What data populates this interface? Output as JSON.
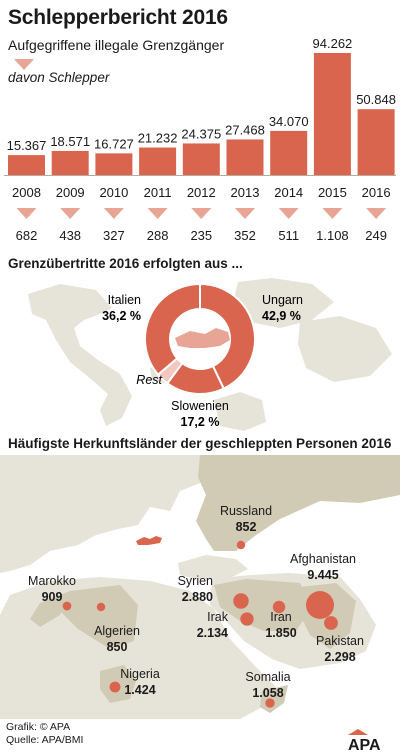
{
  "title": "Schlepperbericht 2016",
  "subtitle": "Aufgegriffene illegale Grenzgänger",
  "legend": {
    "schlepper_label": "davon Schlepper"
  },
  "chart_data": [
    {
      "type": "bar",
      "categories": [
        "2008",
        "2009",
        "2010",
        "2011",
        "2012",
        "2013",
        "2014",
        "2015",
        "2016"
      ],
      "series": [
        {
          "name": "Aufgegriffene illegale Grenzgänger",
          "values": [
            15367,
            18571,
            16727,
            21232,
            24375,
            27468,
            34070,
            94262,
            50848
          ]
        },
        {
          "name": "davon Schlepper",
          "values": [
            682,
            438,
            327,
            288,
            235,
            352,
            511,
            1108,
            249
          ]
        }
      ],
      "value_labels": [
        "15.367",
        "18.571",
        "16.727",
        "21.232",
        "24.375",
        "27.468",
        "34.070",
        "94.262",
        "50.848"
      ],
      "schlepper_labels": [
        "682",
        "438",
        "327",
        "288",
        "235",
        "352",
        "511",
        "1.108",
        "249"
      ],
      "title": "Schlepperbericht 2016",
      "subtitle": "Aufgegriffene illegale Grenzgänger",
      "ylim": [
        0,
        100000
      ]
    },
    {
      "type": "pie",
      "title": "Grenzübertritte 2016 erfolgten aus ...",
      "categories": [
        "Ungarn",
        "Slowenien",
        "Rest",
        "Italien"
      ],
      "values": [
        42.9,
        17.2,
        3.7,
        36.2
      ],
      "value_labels": [
        "42,9 %",
        "17,2 %",
        "",
        "36,2 %"
      ]
    },
    {
      "type": "scatter",
      "title": "Häufigste Herkunftsländer der geschleppten Personen 2016",
      "categories": [
        "Russland",
        "Afghanistan",
        "Syrien",
        "Irak",
        "Iran",
        "Pakistan",
        "Marokko",
        "Algerien",
        "Nigeria",
        "Somalia"
      ],
      "values": [
        852,
        9445,
        2880,
        2134,
        1850,
        2298,
        909,
        850,
        1424,
        1058
      ],
      "value_labels": [
        "852",
        "9.445",
        "2.880",
        "2.134",
        "1.850",
        "2.298",
        "909",
        "850",
        "1.424",
        "1.058"
      ]
    }
  ],
  "sections": {
    "border_title": "Grenzübertritte 2016 erfolgten aus ...",
    "origin_title": "Häufigste Herkunftsländer der geschleppten Personen 2016"
  },
  "donut": {
    "labels": {
      "italien": "Italien",
      "italien_value": "36,2 %",
      "ungarn": "Ungarn",
      "ungarn_value": "42,9 %",
      "slowenien": "Slowenien",
      "slowenien_value": "17,2 %",
      "rest": "Rest"
    }
  },
  "footer": {
    "line1": "Grafik: © APA",
    "line2": "Quelle: APA/BMI"
  },
  "logo_text": "APA",
  "colors": {
    "bar": "#d9654f",
    "arrow": "#e8a596",
    "map_land": "#e6e3d8",
    "map_highlight": "#d1cab4",
    "dot": "#d9654f",
    "text": "#1a1a1a"
  }
}
